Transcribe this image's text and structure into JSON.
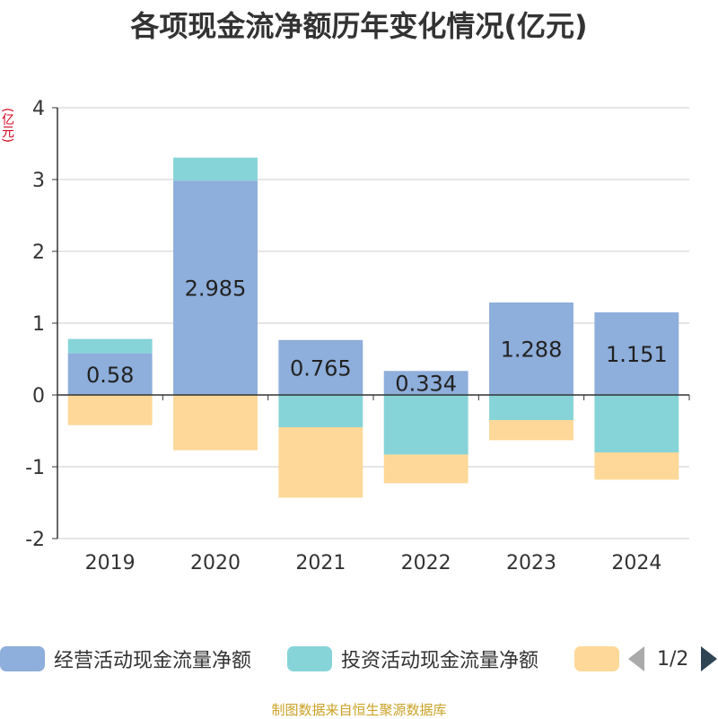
{
  "title": "各项现金流净额历年变化情况(亿元)",
  "unit_label": "(亿元)",
  "source": "制图数据来自恒生聚源数据库",
  "legend": {
    "items": [
      {
        "label": "经营活动现金流量净额",
        "color": "#8eaedb"
      },
      {
        "label": "投资活动现金流量净额",
        "color": "#86d4d7"
      },
      {
        "label": "",
        "color": "#fdd898"
      }
    ],
    "page": "1/2"
  },
  "chart_data": {
    "type": "bar",
    "stacked": true,
    "categories": [
      "2019",
      "2020",
      "2021",
      "2022",
      "2023",
      "2024"
    ],
    "ylim": [
      -2,
      4
    ],
    "yticks": [
      -2,
      -1,
      0,
      1,
      2,
      3,
      4
    ],
    "grid": true,
    "series": [
      {
        "name": "经营活动现金流量净额",
        "color": "#8eaedb",
        "values": [
          0.58,
          2.985,
          0.765,
          0.334,
          1.288,
          1.151
        ],
        "show_labels": true
      },
      {
        "name": "投资活动现金流量净额",
        "color": "#86d4d7",
        "values": [
          0.2,
          0.32,
          -0.45,
          -0.83,
          -0.35,
          -0.8
        ],
        "show_labels": false
      },
      {
        "name": "",
        "color": "#fdd898",
        "values": [
          -0.42,
          -0.77,
          -0.98,
          -0.4,
          -0.28,
          -0.38
        ],
        "show_labels": false
      }
    ]
  }
}
